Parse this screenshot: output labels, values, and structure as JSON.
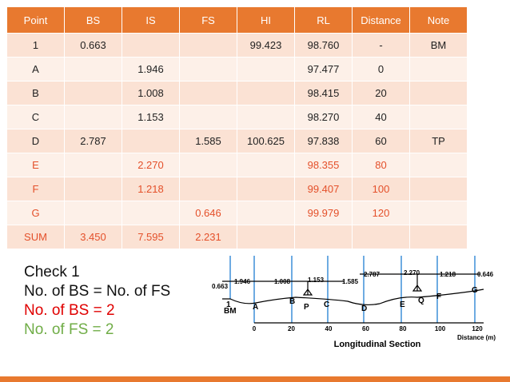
{
  "table": {
    "header": [
      "Point",
      "BS",
      "IS",
      "FS",
      "HI",
      "RL",
      "Distance",
      "Note"
    ],
    "rows": [
      [
        "1",
        "0.663",
        null,
        null,
        "99.423",
        "98.760",
        "-",
        "BM"
      ],
      [
        "A",
        null,
        "1.946",
        null,
        null,
        "97.477",
        "0",
        null
      ],
      [
        "B",
        null,
        "1.008",
        null,
        null,
        "98.415",
        "20",
        null
      ],
      [
        "C",
        null,
        "1.153",
        null,
        null,
        "98.270",
        "40",
        null
      ],
      [
        "D",
        "2.787",
        null,
        "1.585",
        "100.625",
        "97.838",
        "60",
        "TP"
      ],
      [
        "E",
        null,
        "2.270",
        null,
        null,
        "98.355",
        "80",
        null
      ],
      [
        "F",
        null,
        "1.218",
        null,
        null,
        "99.407",
        "100",
        null
      ],
      [
        "G",
        null,
        null,
        "0.646",
        null,
        "99.979",
        "120",
        null
      ],
      [
        "SUM",
        "3.450",
        "7.595",
        "2.231",
        null,
        null,
        null,
        null
      ]
    ]
  },
  "check": {
    "lines": [
      "Check 1",
      "No. of BS = No. of FS",
      "No. of BS = 2",
      "No. of FS = 2"
    ]
  },
  "diagram": {
    "readings": [
      "0.663",
      "1.946",
      "1.008",
      "1.153",
      "1.585",
      "2.787",
      "2.270",
      "1.218",
      "0.646"
    ],
    "points": [
      "1",
      "BM",
      "A",
      "B",
      "P",
      "C",
      "D",
      "E",
      "Q",
      "F",
      "G"
    ],
    "distances": [
      "0",
      "20",
      "40",
      "60",
      "80",
      "100",
      "120"
    ],
    "axis_label": "Distance (m)",
    "caption": "Longitudinal Section"
  }
}
